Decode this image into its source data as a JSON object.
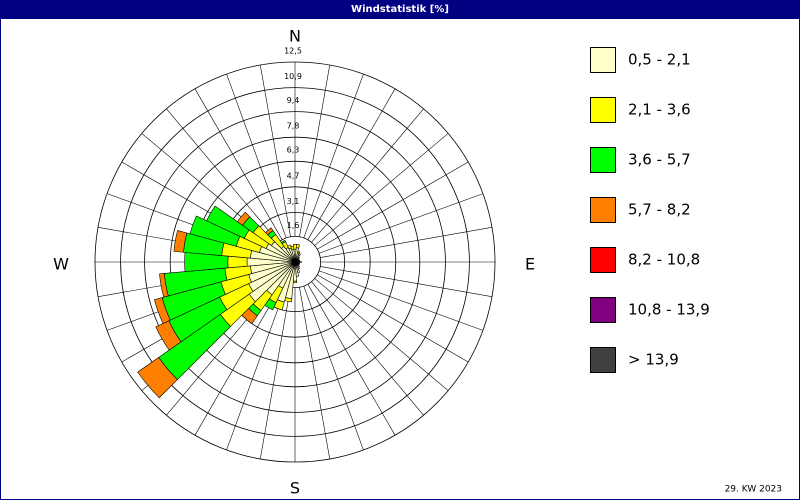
{
  "chart_data": {
    "type": "windrose",
    "title": "Windstatistik [%]",
    "footer": "29. KW 2023",
    "compass_labels": [
      "N",
      "E",
      "S",
      "W"
    ],
    "x": [
      0,
      10,
      20,
      30,
      40,
      50,
      60,
      70,
      80,
      90,
      100,
      110,
      120,
      130,
      140,
      150,
      160,
      170,
      180,
      190,
      200,
      210,
      220,
      230,
      240,
      250,
      260,
      270,
      280,
      290,
      300,
      310,
      320,
      330,
      340,
      350
    ],
    "rlim": [
      0,
      12.5
    ],
    "rticks": [
      {
        "value": 1.6,
        "label": "1,6"
      },
      {
        "value": 3.1,
        "label": "3,1"
      },
      {
        "value": 4.7,
        "label": "4,7"
      },
      {
        "value": 6.3,
        "label": "6,3"
      },
      {
        "value": 7.8,
        "label": "7,8"
      },
      {
        "value": 9.4,
        "label": "9,4"
      },
      {
        "value": 10.9,
        "label": "10,9"
      },
      {
        "value": 12.5,
        "label": "12,5"
      }
    ],
    "grid": true,
    "series": [
      {
        "name": "0,5 - 2,1",
        "color": "#ffffcc",
        "values": [
          0.8,
          0.9,
          0.6,
          0.5,
          0.4,
          0.3,
          0.3,
          0.3,
          0.3,
          0.4,
          0.3,
          0.3,
          0.3,
          0.3,
          0.4,
          0.5,
          0.7,
          0.9,
          1.2,
          2.3,
          2.6,
          1.8,
          2.5,
          3.5,
          3.2,
          3.0,
          2.8,
          3.0,
          2.8,
          2.3,
          2.0,
          1.8,
          1.2,
          1.0,
          0.9,
          0.8
        ]
      },
      {
        "name": "2,1 - 3,6",
        "color": "#ffff00",
        "values": [
          0.3,
          0.2,
          0.1,
          0.1,
          0,
          0,
          0,
          0,
          0,
          0,
          0,
          0,
          0,
          0,
          0,
          0,
          0,
          0,
          0.1,
          0.2,
          0.5,
          1.0,
          1.2,
          2.2,
          2.0,
          1.8,
          1.6,
          1.2,
          1.8,
          1.5,
          1.5,
          1.4,
          0.9,
          0.4,
          0.2,
          0.2
        ]
      },
      {
        "name": "3,6 - 5,7",
        "color": "#00ff00",
        "values": [
          0,
          0,
          0,
          0,
          0,
          0,
          0,
          0,
          0,
          0,
          0,
          0,
          0,
          0,
          0,
          0,
          0,
          0,
          0,
          0,
          0,
          0.5,
          0.4,
          4.7,
          3.5,
          3.8,
          3.8,
          2.7,
          2.4,
          3.0,
          2.6,
          0.8,
          0.3,
          0.1,
          0,
          0
        ]
      },
      {
        "name": "5,7 - 8,2",
        "color": "#ff8000",
        "values": [
          0,
          0,
          0,
          0,
          0,
          0,
          0,
          0,
          0,
          0,
          0,
          0,
          0,
          0,
          0,
          0,
          0,
          0,
          0,
          0,
          0,
          0,
          0.6,
          1.6,
          0.9,
          0.5,
          0.3,
          0,
          0.6,
          0,
          0,
          0.4,
          0.2,
          0,
          0,
          0
        ]
      },
      {
        "name": "8,2 - 10,8",
        "color": "#ff0000",
        "values": [
          0,
          0,
          0,
          0,
          0,
          0,
          0,
          0,
          0,
          0,
          0,
          0,
          0,
          0,
          0,
          0,
          0,
          0,
          0,
          0,
          0,
          0,
          0,
          0,
          0,
          0,
          0,
          0,
          0,
          0,
          0,
          0,
          0,
          0,
          0,
          0
        ]
      },
      {
        "name": "10,8 - 13,9",
        "color": "#800080",
        "values": [
          0,
          0,
          0,
          0,
          0,
          0,
          0,
          0,
          0,
          0,
          0,
          0,
          0,
          0,
          0,
          0,
          0,
          0,
          0,
          0,
          0,
          0,
          0,
          0,
          0,
          0,
          0,
          0,
          0,
          0,
          0,
          0,
          0,
          0,
          0,
          0
        ]
      },
      {
        "name": "> 13,9",
        "color": "#404040",
        "values": [
          0,
          0,
          0,
          0,
          0,
          0,
          0,
          0,
          0,
          0,
          0,
          0,
          0,
          0,
          0,
          0,
          0,
          0,
          0,
          0,
          0,
          0,
          0,
          0,
          0,
          0,
          0,
          0,
          0,
          0,
          0,
          0,
          0,
          0,
          0,
          0
        ]
      }
    ]
  }
}
